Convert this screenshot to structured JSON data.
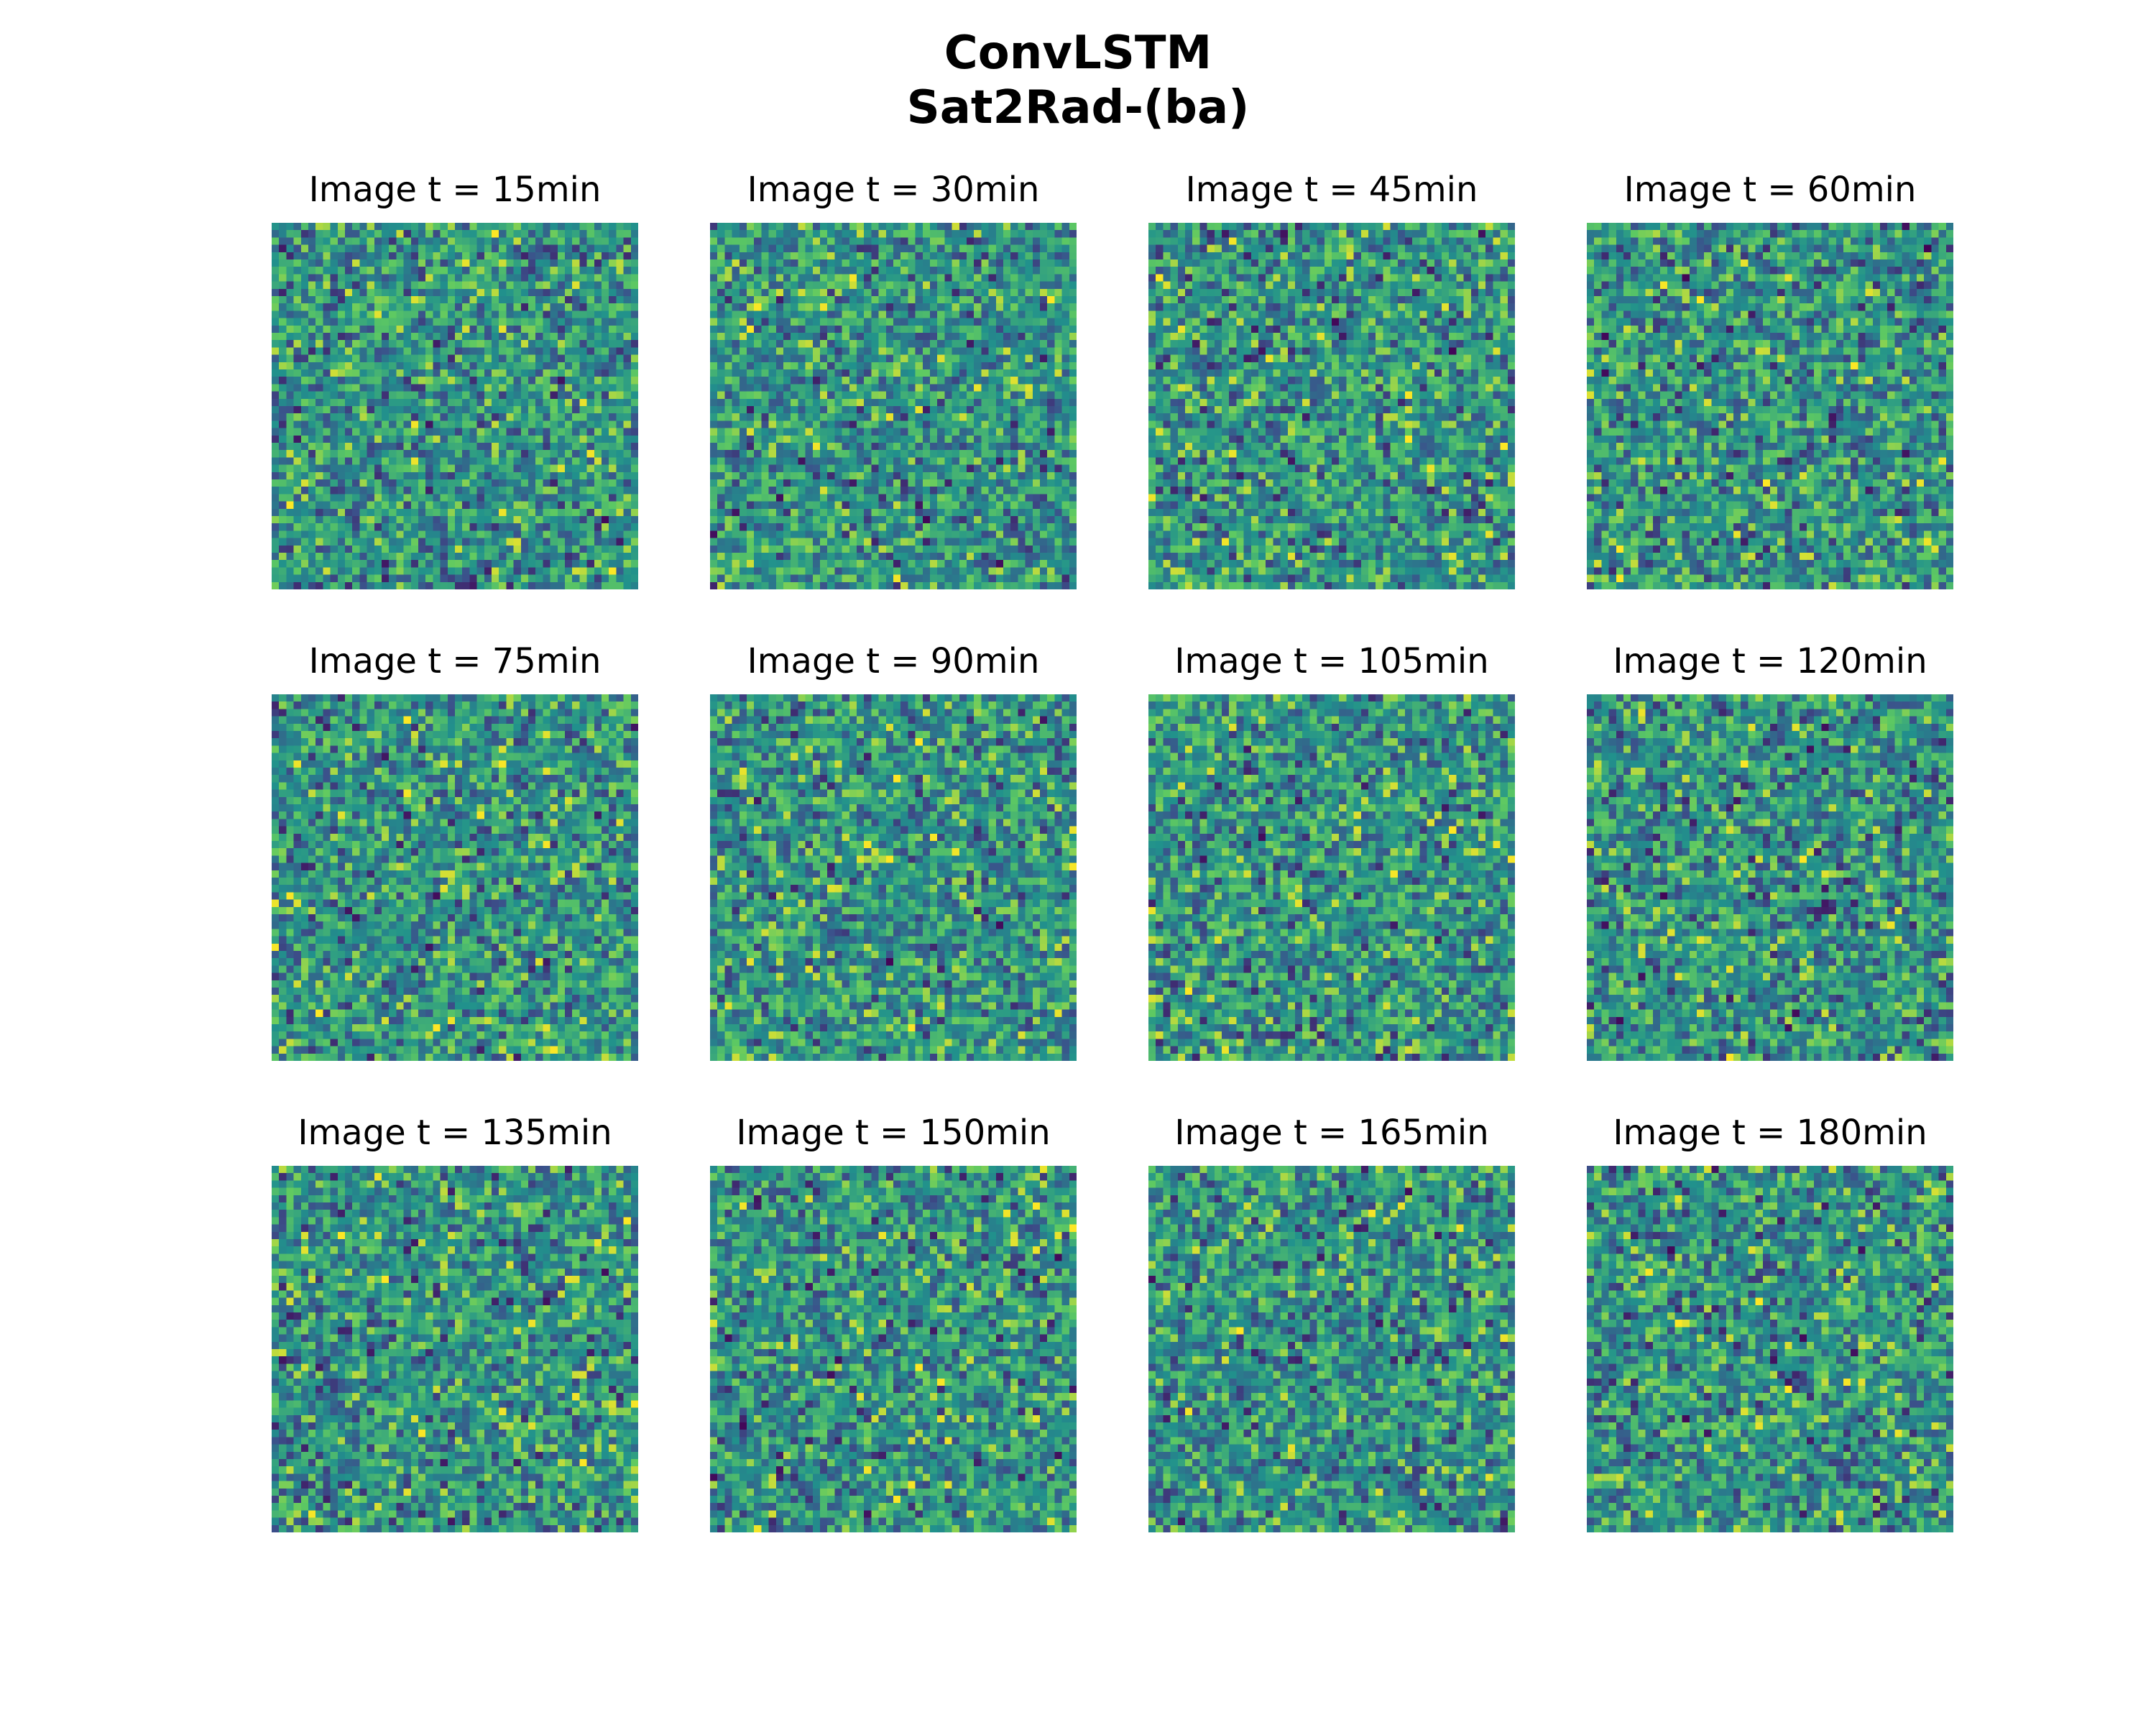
{
  "chart_data": {
    "type": "heatmap",
    "title": "ConvLSTM",
    "subtitle": "Sat2Rad-(ba)",
    "colormap": "viridis",
    "grid": false,
    "axes_visible": false,
    "layout": {
      "rows": 3,
      "cols": 4
    },
    "panel_grid_size": 50,
    "panels": [
      {
        "title": "Image t = 15min",
        "t_min": 15
      },
      {
        "title": "Image t = 30min",
        "t_min": 30
      },
      {
        "title": "Image t = 45min",
        "t_min": 45
      },
      {
        "title": "Image t = 60min",
        "t_min": 60
      },
      {
        "title": "Image t = 75min",
        "t_min": 75
      },
      {
        "title": "Image t = 90min",
        "t_min": 90
      },
      {
        "title": "Image t = 105min",
        "t_min": 105
      },
      {
        "title": "Image t = 120min",
        "t_min": 120
      },
      {
        "title": "Image t = 135min",
        "t_min": 135
      },
      {
        "title": "Image t = 150min",
        "t_min": 150
      },
      {
        "title": "Image t = 165min",
        "t_min": 165
      },
      {
        "title": "Image t = 180min",
        "t_min": 180
      }
    ]
  },
  "colors": {
    "viridis_stops": [
      "#440154",
      "#3b528b",
      "#21918c",
      "#5ec962",
      "#fde725"
    ]
  }
}
